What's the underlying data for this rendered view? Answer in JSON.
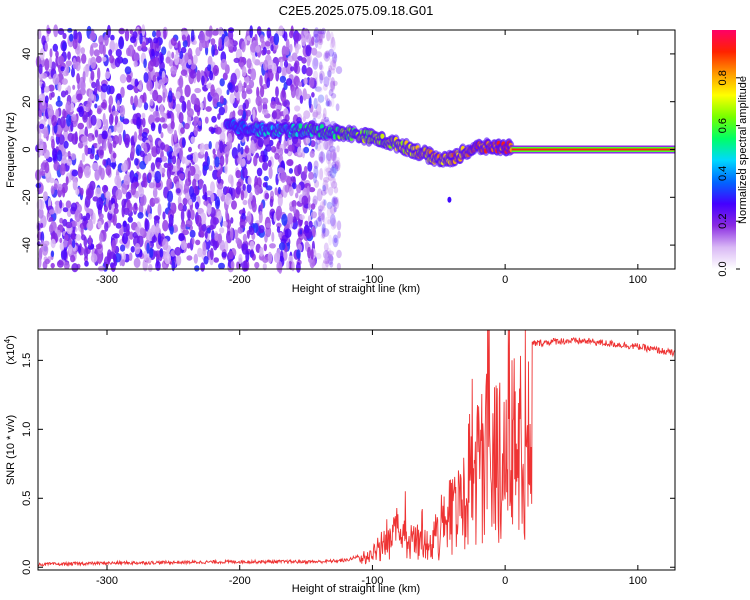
{
  "title": "C2E5.2025.075.09.18.G01",
  "chart_data": [
    {
      "type": "heatmap",
      "name": "spectrogram",
      "xlabel": "Height of straight line (km)",
      "ylabel": "Frequency (Hz)",
      "xlim": [
        -352,
        128
      ],
      "ylim": [
        -50,
        50
      ],
      "xticks": [
        -300,
        -200,
        -100,
        0,
        100
      ],
      "xtick_labels": [
        "-300",
        "-200",
        "-100",
        "0",
        "100"
      ],
      "yticks": [
        -40,
        -20,
        0,
        20,
        40
      ],
      "ytick_labels": [
        "-40",
        "-20",
        "0",
        "20",
        "40"
      ],
      "noise_region_km": [
        -352,
        -125
      ],
      "signal_trace": {
        "x_km": [
          -210,
          -180,
          -150,
          -120,
          -100,
          -80,
          -60,
          -50,
          -40,
          -30,
          -20,
          -10,
          0,
          5
        ],
        "freq_hz": [
          10,
          8,
          8,
          7,
          5,
          2,
          -2,
          -4,
          -4,
          -1,
          1,
          1,
          1,
          1
        ]
      },
      "tone_segment": {
        "x_km": [
          5,
          128
        ],
        "freq_hz": 0
      },
      "colorbar": {
        "label": "Normalized spectral amplitude",
        "range": [
          0,
          1
        ],
        "ticks": [
          0.0,
          0.2,
          0.4,
          0.6,
          0.8
        ],
        "tick_labels": [
          "0.0",
          "0.2",
          "0.4",
          "0.6",
          "0.8"
        ],
        "colors": [
          "#ffffff",
          "#d9b8f5",
          "#8a2be2",
          "#4400ff",
          "#0066ff",
          "#00d8ff",
          "#00ff66",
          "#77ff00",
          "#ffff00",
          "#ff9900",
          "#ff2200",
          "#ff0066"
        ]
      }
    },
    {
      "type": "line",
      "name": "snr",
      "xlabel": "Height of straight line (km)",
      "ylabel": "SNR (10 * v/v)",
      "scale_label": "(x10",
      "scale_exponent": "4",
      "xlim": [
        -352,
        128
      ],
      "ylim": [
        -0.02,
        1.72
      ],
      "xticks": [
        -300,
        -200,
        -100,
        0,
        100
      ],
      "xtick_labels": [
        "-300",
        "-200",
        "-100",
        "0",
        "100"
      ],
      "yticks": [
        0.0,
        0.5,
        1.0,
        1.5
      ],
      "ytick_labels": [
        "0.0",
        "0.5",
        "1.0",
        "1.5"
      ],
      "line_color": "#ee3333",
      "envelope": {
        "x": [
          -352,
          -300,
          -200,
          -140,
          -120,
          -110,
          -100,
          -90,
          -80,
          -75,
          -70,
          -60,
          -50,
          -45,
          -40,
          -35,
          -30,
          -25,
          -20,
          -15,
          -10,
          -5,
          0,
          5,
          10,
          20,
          30,
          40,
          60,
          80,
          100,
          128
        ],
        "y": [
          0.02,
          0.03,
          0.04,
          0.04,
          0.05,
          0.08,
          0.15,
          0.35,
          0.4,
          0.42,
          0.3,
          0.35,
          0.4,
          0.55,
          0.7,
          0.9,
          1.1,
          1.25,
          1.3,
          1.35,
          1.4,
          1.35,
          1.38,
          1.5,
          1.58,
          1.62,
          1.63,
          1.64,
          1.64,
          1.62,
          1.6,
          1.55
        ]
      }
    }
  ]
}
